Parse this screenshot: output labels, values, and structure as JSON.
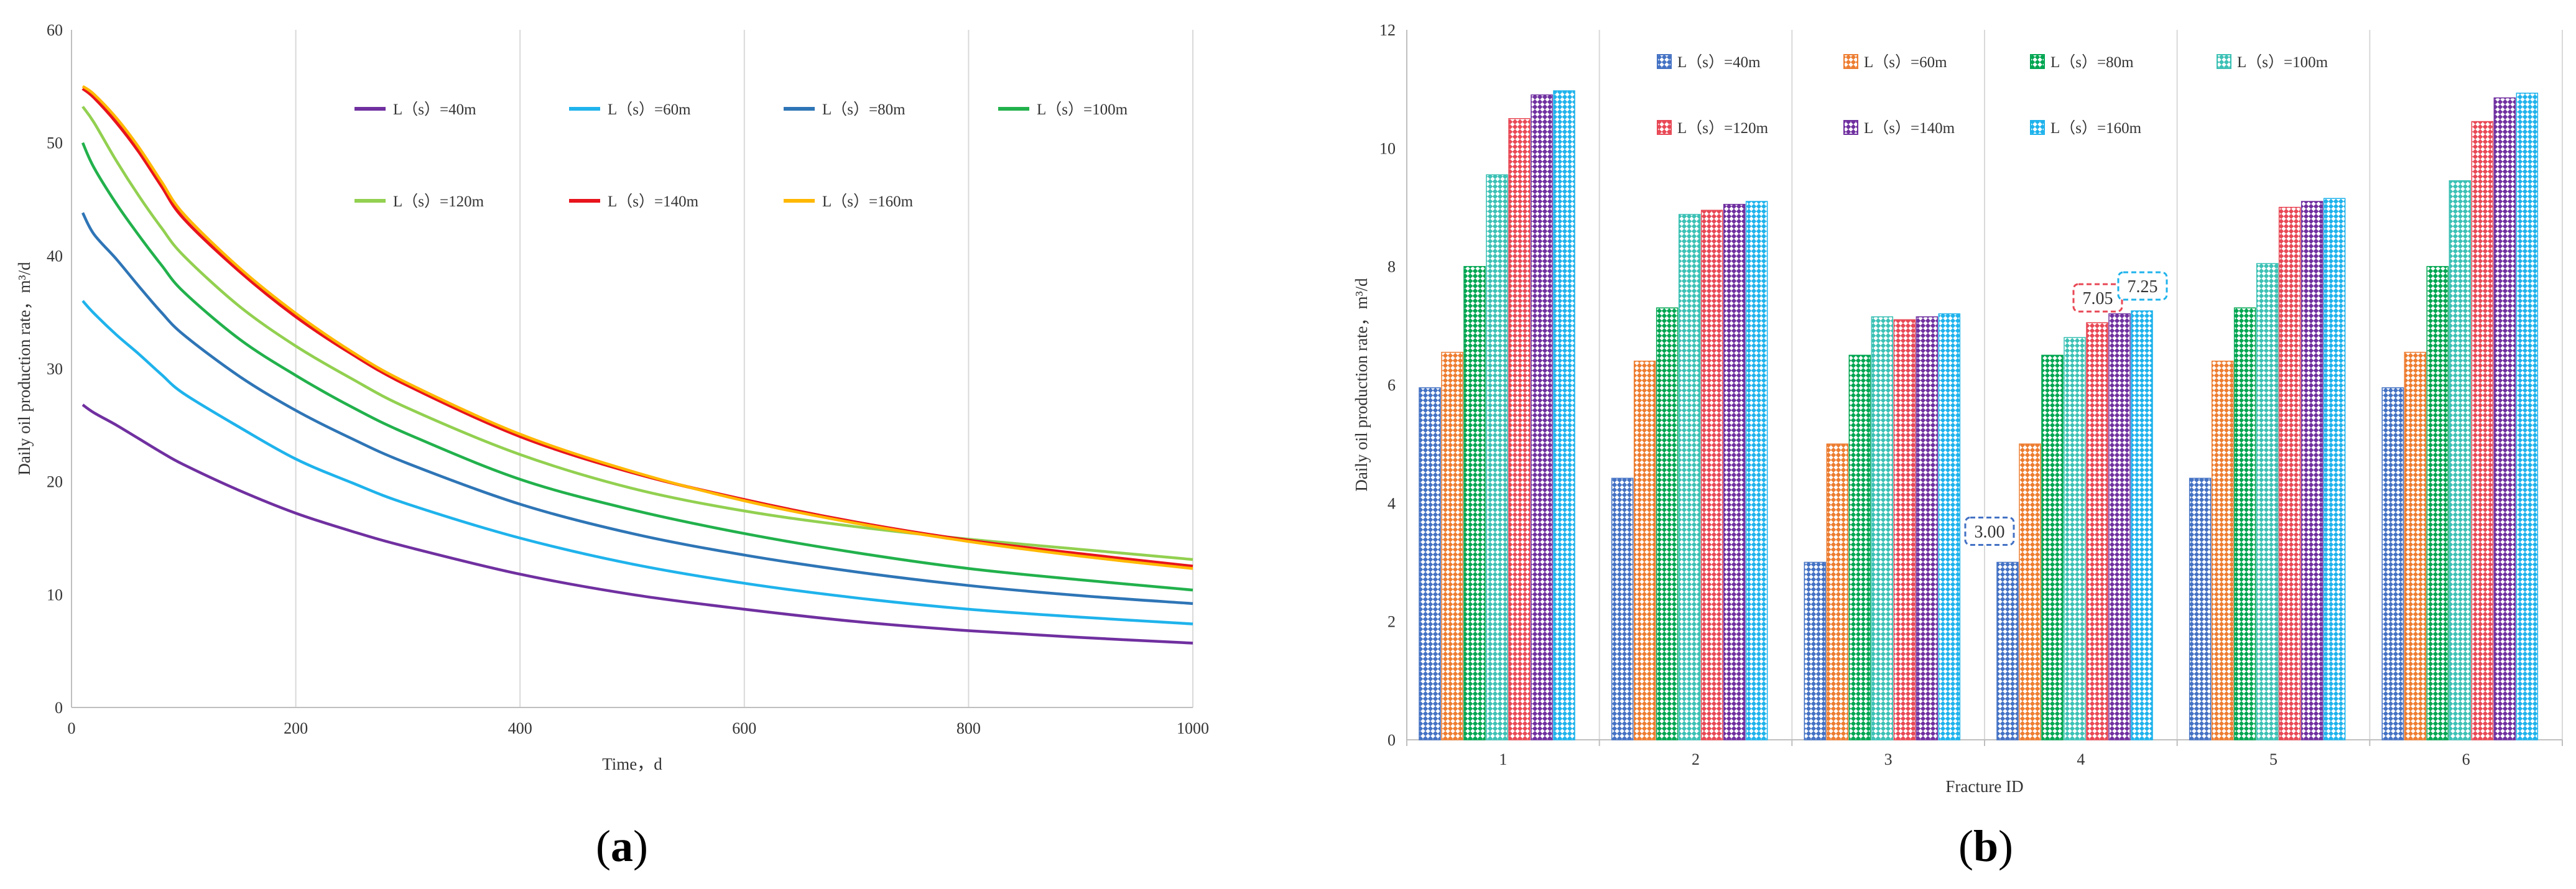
{
  "captions": {
    "a_open": "(",
    "a_letter": "a",
    "a_close": ")",
    "b_open": "(",
    "b_letter": "b",
    "b_close": ")"
  },
  "chart_data": [
    {
      "panel": "a",
      "type": "line",
      "title": "",
      "xlabel": "Time，d",
      "ylabel": "Daily oil production rate，m³/d",
      "xlim": [
        0,
        1000
      ],
      "ylim": [
        0,
        60
      ],
      "xticks": [
        0,
        200,
        400,
        600,
        800,
        1000
      ],
      "yticks": [
        0,
        10,
        20,
        30,
        40,
        50,
        60
      ],
      "grid": "vertical",
      "legend_position": "top-right",
      "x": [
        10,
        20,
        40,
        60,
        80,
        100,
        150,
        200,
        250,
        300,
        400,
        500,
        600,
        700,
        800,
        900,
        1000
      ],
      "series": [
        {
          "name": "L（s）=40m",
          "color": "#7030a0",
          "values": [
            26.8,
            26.1,
            25.0,
            23.8,
            22.6,
            21.5,
            19.2,
            17.2,
            15.6,
            14.2,
            11.8,
            10.0,
            8.7,
            7.6,
            6.8,
            6.2,
            5.7
          ]
        },
        {
          "name": "L（s）=60m",
          "color": "#1fb3ec",
          "values": [
            36.0,
            34.9,
            33.0,
            31.3,
            29.5,
            27.8,
            24.8,
            22.0,
            19.9,
            18.0,
            15.0,
            12.7,
            11.0,
            9.7,
            8.7,
            8.0,
            7.4
          ]
        },
        {
          "name": "L（s）=80m",
          "color": "#2e75b6",
          "values": [
            43.8,
            41.9,
            39.7,
            37.3,
            35.0,
            33.0,
            29.3,
            26.3,
            23.8,
            21.6,
            18.0,
            15.4,
            13.5,
            12.0,
            10.8,
            9.9,
            9.2
          ]
        },
        {
          "name": "L（s）=100m",
          "color": "#22b14c",
          "values": [
            50.0,
            47.8,
            44.6,
            41.8,
            39.2,
            36.8,
            32.6,
            29.4,
            26.6,
            24.2,
            20.2,
            17.5,
            15.4,
            13.7,
            12.3,
            11.3,
            10.4
          ]
        },
        {
          "name": "L（s）=120m",
          "color": "#92d050",
          "values": [
            53.2,
            51.8,
            48.4,
            45.3,
            42.5,
            40.0,
            35.5,
            32.0,
            29.1,
            26.5,
            22.4,
            19.4,
            17.4,
            16.0,
            14.9,
            14.0,
            13.1
          ]
        },
        {
          "name": "L（s）=140m",
          "color": "#e8141c",
          "values": [
            54.8,
            54.0,
            51.8,
            49.2,
            46.2,
            43.3,
            38.6,
            34.6,
            31.3,
            28.5,
            24.0,
            20.8,
            18.4,
            16.4,
            14.8,
            13.6,
            12.5
          ]
        },
        {
          "name": "L（s）=160m",
          "color": "#ffb800",
          "values": [
            55.0,
            54.3,
            52.2,
            49.6,
            46.6,
            43.7,
            38.9,
            34.9,
            31.5,
            28.7,
            24.2,
            20.9,
            18.3,
            16.3,
            14.7,
            13.4,
            12.3
          ]
        }
      ]
    },
    {
      "panel": "b",
      "type": "bar",
      "title": "",
      "xlabel": "Fracture ID",
      "ylabel": "Daily oil production rate，m³/d",
      "ylim": [
        0,
        12
      ],
      "yticks": [
        0,
        2,
        4,
        6,
        8,
        10,
        12
      ],
      "grid": "vertical-separators",
      "legend_position": "top",
      "categories": [
        "1",
        "2",
        "3",
        "4",
        "5",
        "6"
      ],
      "series": [
        {
          "name": "L（s）=40m",
          "color": "#4472c4",
          "values": [
            5.95,
            4.42,
            3.0,
            3.0,
            4.42,
            5.95
          ]
        },
        {
          "name": "L（s）=60m",
          "color": "#ed7d31",
          "values": [
            6.55,
            6.4,
            5.0,
            5.0,
            6.4,
            6.55
          ]
        },
        {
          "name": "L（s）=80m",
          "color": "#00a651",
          "values": [
            8.0,
            7.3,
            6.5,
            6.5,
            7.3,
            8.0
          ]
        },
        {
          "name": "L（s）=100m",
          "color": "#3cc1b5",
          "values": [
            9.55,
            8.88,
            7.15,
            6.8,
            8.05,
            9.45
          ]
        },
        {
          "name": "L（s）=120m",
          "color": "#e84855",
          "values": [
            10.5,
            8.95,
            7.1,
            7.05,
            9.0,
            10.45
          ]
        },
        {
          "name": "L（s）=140m",
          "color": "#7030a0",
          "values": [
            10.9,
            9.05,
            7.15,
            7.2,
            9.1,
            10.85
          ]
        },
        {
          "name": "L（s）=160m",
          "color": "#1fb3ec",
          "values": [
            10.97,
            9.1,
            7.2,
            7.25,
            9.15,
            10.93
          ]
        }
      ],
      "annotations": [
        {
          "label": "3.00",
          "category": "4",
          "series": "L（s）=40m",
          "color": "#4472c4"
        },
        {
          "label": "7.05",
          "category": "4",
          "series": "L（s）=120m",
          "color": "#e84855"
        },
        {
          "label": "7.25",
          "category": "4",
          "series": "L（s）=160m",
          "color": "#1fb3ec"
        }
      ]
    }
  ]
}
